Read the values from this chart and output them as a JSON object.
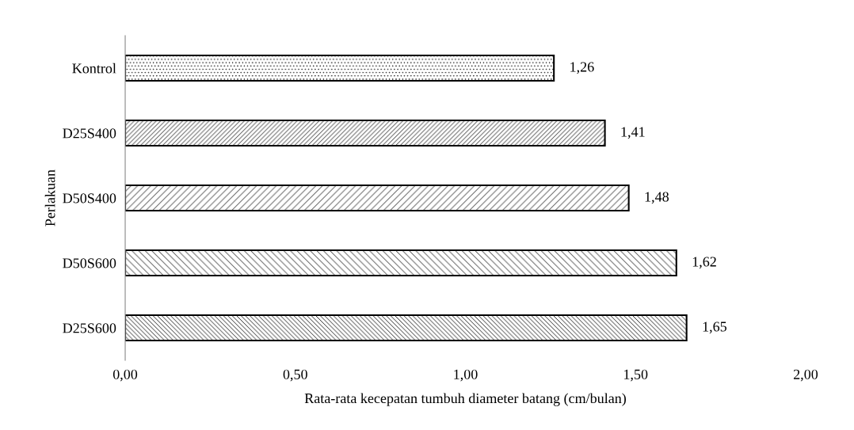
{
  "chart_data": {
    "type": "bar",
    "orientation": "horizontal",
    "xlabel": "Rata-rata kecepatan tumbuh diameter batang (cm/bulan)",
    "ylabel": "Perlakuan",
    "categories": [
      "Kontrol",
      "D25S400",
      "D50S400",
      "D50S600",
      "D25S600"
    ],
    "values": [
      1.26,
      1.41,
      1.48,
      1.62,
      1.65
    ],
    "value_labels": [
      "1,26",
      "1,41",
      "1,48",
      "1,62",
      "1,65"
    ],
    "color": "#000000",
    "xlim": [
      0,
      2
    ],
    "xticks": [
      {
        "value": 0,
        "label": "0,00"
      },
      {
        "value": 0.5,
        "label": "0,50"
      },
      {
        "value": 1,
        "label": "1,00"
      },
      {
        "value": 1.5,
        "label": "1,50"
      },
      {
        "value": 2,
        "label": "2,00"
      }
    ],
    "grid": false,
    "legend": false
  }
}
